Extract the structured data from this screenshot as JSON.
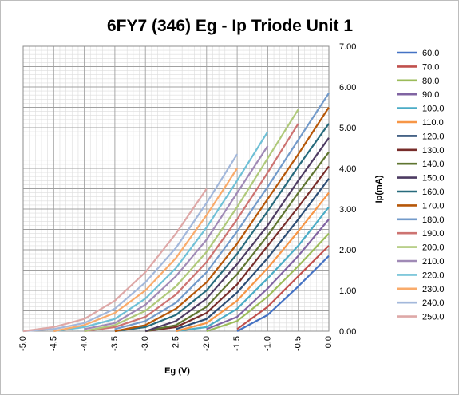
{
  "chart_data": {
    "type": "line",
    "title": "6FY7 (346) Eg - Ip Triode Unit 1",
    "xlabel": "Eg (V)",
    "ylabel": "Ip(mA)",
    "xlim": [
      -5.0,
      0.0
    ],
    "ylim": [
      0.0,
      7.0
    ],
    "x_ticks": [
      "-5.0",
      "-4.5",
      "-4.0",
      "-3.5",
      "-3.0",
      "-2.5",
      "-2.0",
      "-1.5",
      "-1.0",
      "-0.5",
      "0.0"
    ],
    "y_ticks": [
      "0.00",
      "1.00",
      "2.00",
      "3.00",
      "4.00",
      "5.00",
      "6.00",
      "7.00"
    ],
    "grid": true,
    "legend_position": "right",
    "series": [
      {
        "name": "60.0",
        "color": "#4472C4",
        "x": [
          -1.5,
          -1.0,
          -0.5,
          0.0
        ],
        "y": [
          0.0,
          0.4,
          1.1,
          1.85
        ]
      },
      {
        "name": "70.0",
        "color": "#C0504D",
        "x": [
          -1.5,
          -1.0,
          -0.5,
          0.0
        ],
        "y": [
          0.05,
          0.6,
          1.35,
          2.1
        ]
      },
      {
        "name": "80.0",
        "color": "#9BBB59",
        "x": [
          -2.0,
          -1.5,
          -1.0,
          -0.5,
          0.0
        ],
        "y": [
          0.0,
          0.25,
          0.85,
          1.6,
          2.4
        ]
      },
      {
        "name": "90.0",
        "color": "#8064A2",
        "x": [
          -2.0,
          -1.5,
          -1.0,
          -0.5,
          0.0
        ],
        "y": [
          0.05,
          0.35,
          1.05,
          1.85,
          2.75
        ]
      },
      {
        "name": "100.0",
        "color": "#4BACC6",
        "x": [
          -2.5,
          -2.0,
          -1.5,
          -1.0,
          -0.5,
          0.0
        ],
        "y": [
          0.0,
          0.1,
          0.55,
          1.3,
          2.1,
          3.05
        ]
      },
      {
        "name": "110.0",
        "color": "#F79646",
        "x": [
          -2.5,
          -2.0,
          -1.5,
          -1.0,
          -0.5,
          0.0
        ],
        "y": [
          0.0,
          0.2,
          0.75,
          1.55,
          2.45,
          3.4
        ]
      },
      {
        "name": "120.0",
        "color": "#2C4D75",
        "x": [
          -2.5,
          -2.0,
          -1.5,
          -1.0,
          -0.5,
          0.0
        ],
        "y": [
          0.05,
          0.3,
          0.95,
          1.8,
          2.75,
          3.75
        ]
      },
      {
        "name": "130.0",
        "color": "#772C2A",
        "x": [
          -3.0,
          -2.5,
          -2.0,
          -1.5,
          -1.0,
          -0.5,
          0.0
        ],
        "y": [
          0.0,
          0.1,
          0.45,
          1.15,
          2.1,
          3.05,
          4.05
        ]
      },
      {
        "name": "140.0",
        "color": "#5F7530",
        "x": [
          -3.0,
          -2.5,
          -2.0,
          -1.5,
          -1.0,
          -0.5,
          0.0
        ],
        "y": [
          0.0,
          0.15,
          0.6,
          1.4,
          2.35,
          3.4,
          4.4
        ]
      },
      {
        "name": "150.0",
        "color": "#4D3B62",
        "x": [
          -3.0,
          -2.5,
          -2.0,
          -1.5,
          -1.0,
          -0.5,
          0.0
        ],
        "y": [
          0.0,
          0.25,
          0.8,
          1.65,
          2.6,
          3.7,
          4.75
        ]
      },
      {
        "name": "160.0",
        "color": "#276A7C",
        "x": [
          -3.5,
          -3.0,
          -2.5,
          -2.0,
          -1.5,
          -1.0,
          -0.5,
          0.0
        ],
        "y": [
          0.0,
          0.1,
          0.4,
          1.0,
          1.9,
          2.95,
          4.05,
          5.1
        ]
      },
      {
        "name": "170.0",
        "color": "#B65708",
        "x": [
          -3.5,
          -3.0,
          -2.5,
          -2.0,
          -1.5,
          -1.0,
          -0.5,
          0.0
        ],
        "y": [
          0.0,
          0.15,
          0.55,
          1.2,
          2.15,
          3.25,
          4.35,
          5.5
        ]
      },
      {
        "name": "180.0",
        "color": "#729ACA",
        "x": [
          -3.5,
          -3.0,
          -2.5,
          -2.0,
          -1.5,
          -1.0,
          -0.5,
          0.0
        ],
        "y": [
          0.05,
          0.25,
          0.7,
          1.45,
          2.45,
          3.55,
          4.7,
          5.85
        ]
      },
      {
        "name": "190.0",
        "color": "#CD7371",
        "x": [
          -4.0,
          -3.5,
          -3.0,
          -2.5,
          -2.0,
          -1.5,
          -1.0,
          -0.5
        ],
        "y": [
          0.0,
          0.1,
          0.35,
          0.9,
          1.7,
          2.75,
          3.9,
          5.1
        ]
      },
      {
        "name": "200.0",
        "color": "#AFC97A",
        "x": [
          -4.0,
          -3.5,
          -3.0,
          -2.5,
          -2.0,
          -1.5,
          -1.0,
          -0.5
        ],
        "y": [
          0.0,
          0.15,
          0.5,
          1.1,
          1.95,
          3.05,
          4.25,
          5.45
        ]
      },
      {
        "name": "210.0",
        "color": "#A08AB6",
        "x": [
          -4.0,
          -3.5,
          -3.0,
          -2.5,
          -2.0,
          -1.5,
          -1.0
        ],
        "y": [
          0.05,
          0.2,
          0.65,
          1.35,
          2.25,
          3.4,
          4.55
        ]
      },
      {
        "name": "220.0",
        "color": "#6FC0D6",
        "x": [
          -4.5,
          -4.0,
          -3.5,
          -3.0,
          -2.5,
          -2.0,
          -1.5,
          -1.0
        ],
        "y": [
          0.0,
          0.1,
          0.3,
          0.8,
          1.55,
          2.55,
          3.7,
          4.9
        ]
      },
      {
        "name": "230.0",
        "color": "#F9AB6B",
        "x": [
          -4.5,
          -4.0,
          -3.5,
          -3.0,
          -2.5,
          -2.0,
          -1.5
        ],
        "y": [
          0.0,
          0.15,
          0.45,
          1.0,
          1.8,
          2.85,
          4.0
        ]
      },
      {
        "name": "240.0",
        "color": "#A3B8DB",
        "x": [
          -5.0,
          -4.5,
          -4.0,
          -3.5,
          -3.0,
          -2.5,
          -2.0,
          -1.5
        ],
        "y": [
          0.0,
          0.05,
          0.2,
          0.55,
          1.2,
          2.05,
          3.15,
          4.35
        ]
      },
      {
        "name": "250.0",
        "color": "#DEA8A7",
        "x": [
          -5.0,
          -4.5,
          -4.0,
          -3.5,
          -3.0,
          -2.5,
          -2.0
        ],
        "y": [
          0.0,
          0.1,
          0.3,
          0.75,
          1.45,
          2.4,
          3.5
        ]
      }
    ]
  }
}
